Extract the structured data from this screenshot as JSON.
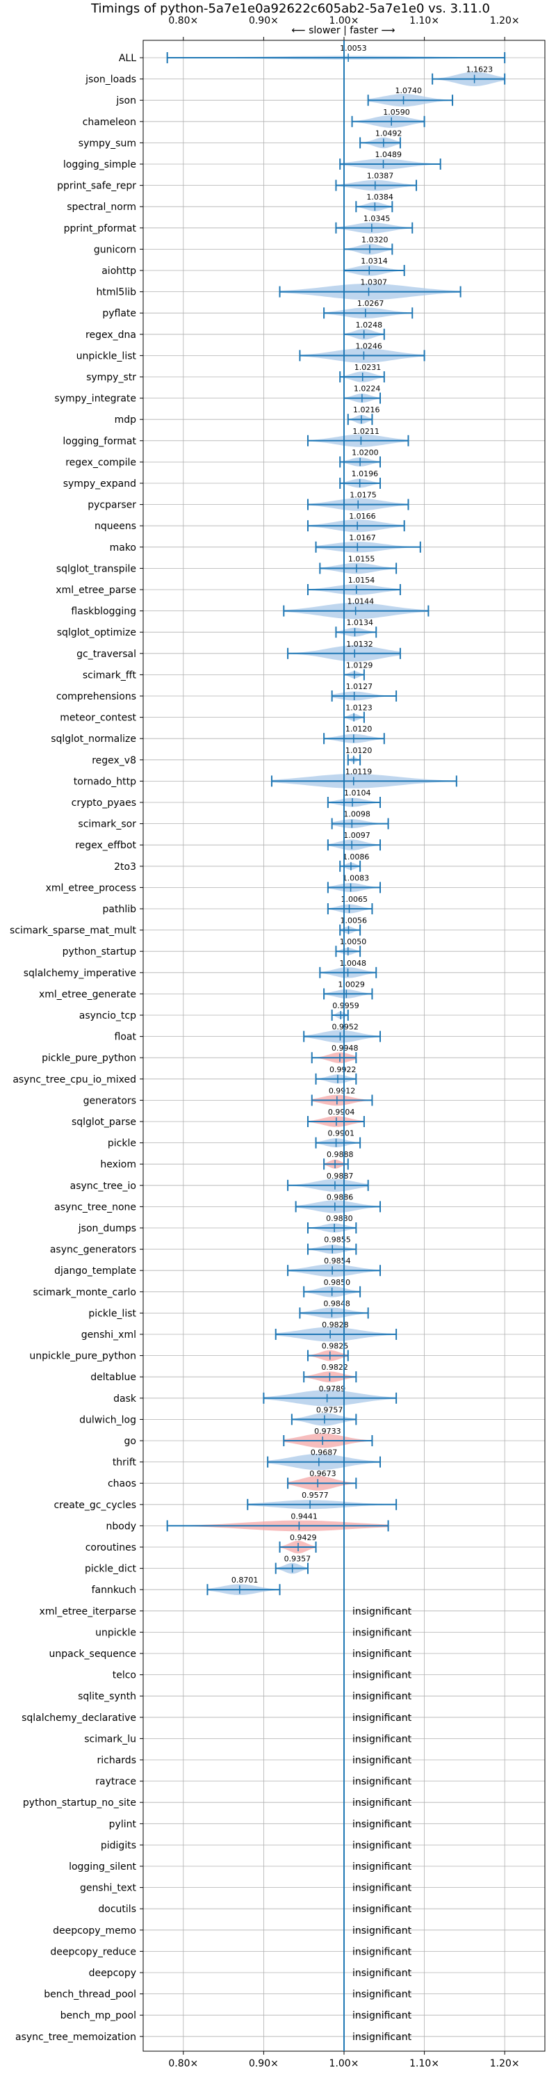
{
  "chart_data": {
    "type": "violin",
    "title": "Timings of python-5a7e1e0a92622c605ab2-5a7e1e0 vs. 3.11.0",
    "direction_label": "⟵ slower | faster ⟶",
    "xlim": [
      0.75,
      1.25
    ],
    "xticks": [
      0.8,
      0.9,
      1.0,
      1.1,
      1.2
    ],
    "xtick_labels": [
      "0.80×",
      "0.90×",
      "1.00×",
      "1.10×",
      "1.20×"
    ],
    "reference_line": 1.0,
    "colors": {
      "faster": "#a9c8e8",
      "slower": "#f4a7a7",
      "errorbar": "#1f77b4",
      "grid": "#b0b0b0"
    },
    "insignificant_label": "insignificant",
    "benchmarks": [
      {
        "name": "ALL",
        "value": 1.0053,
        "label": "1.0053",
        "min": 0.78,
        "max": 1.2,
        "color": "faster",
        "width": 0.2
      },
      {
        "name": "json_loads",
        "value": 1.1623,
        "label": "1.1623",
        "min": 1.11,
        "max": 1.2,
        "color": "faster",
        "width": 0.8
      },
      {
        "name": "json",
        "value": 1.074,
        "label": "1.0740",
        "min": 1.03,
        "max": 1.135,
        "color": "faster",
        "width": 0.7
      },
      {
        "name": "chameleon",
        "value": 1.059,
        "label": "1.0590",
        "min": 1.01,
        "max": 1.1,
        "color": "faster",
        "width": 0.7
      },
      {
        "name": "sympy_sum",
        "value": 1.0492,
        "label": "1.0492",
        "min": 1.02,
        "max": 1.07,
        "color": "faster",
        "width": 0.6
      },
      {
        "name": "logging_simple",
        "value": 1.0489,
        "label": "1.0489",
        "min": 0.995,
        "max": 1.12,
        "color": "faster",
        "width": 0.6
      },
      {
        "name": "pprint_safe_repr",
        "value": 1.0387,
        "label": "1.0387",
        "min": 0.99,
        "max": 1.09,
        "color": "faster",
        "width": 0.6
      },
      {
        "name": "spectral_norm",
        "value": 1.0384,
        "label": "1.0384",
        "min": 1.015,
        "max": 1.06,
        "color": "faster",
        "width": 0.5
      },
      {
        "name": "pprint_pformat",
        "value": 1.0345,
        "label": "1.0345",
        "min": 0.99,
        "max": 1.085,
        "color": "faster",
        "width": 0.6
      },
      {
        "name": "gunicorn",
        "value": 1.032,
        "label": "1.0320",
        "min": 1.0,
        "max": 1.06,
        "color": "faster",
        "width": 0.6
      },
      {
        "name": "aiohttp",
        "value": 1.0314,
        "label": "1.0314",
        "min": 1.0,
        "max": 1.075,
        "color": "faster",
        "width": 0.6
      },
      {
        "name": "html5lib",
        "value": 1.0307,
        "label": "1.0307",
        "min": 0.92,
        "max": 1.145,
        "color": "faster",
        "width": 0.9
      },
      {
        "name": "pyflate",
        "value": 1.0267,
        "label": "1.0267",
        "min": 0.975,
        "max": 1.085,
        "color": "faster",
        "width": 0.6
      },
      {
        "name": "regex_dna",
        "value": 1.0248,
        "label": "1.0248",
        "min": 1.0,
        "max": 1.05,
        "color": "faster",
        "width": 0.6
      },
      {
        "name": "unpickle_list",
        "value": 1.0246,
        "label": "1.0246",
        "min": 0.945,
        "max": 1.1,
        "color": "faster",
        "width": 0.8
      },
      {
        "name": "sympy_str",
        "value": 1.0231,
        "label": "1.0231",
        "min": 0.995,
        "max": 1.05,
        "color": "faster",
        "width": 0.6
      },
      {
        "name": "sympy_integrate",
        "value": 1.0224,
        "label": "1.0224",
        "min": 1.0,
        "max": 1.045,
        "color": "faster",
        "width": 0.5
      },
      {
        "name": "mdp",
        "value": 1.0216,
        "label": "1.0216",
        "min": 1.005,
        "max": 1.035,
        "color": "faster",
        "width": 0.5
      },
      {
        "name": "logging_format",
        "value": 1.0211,
        "label": "1.0211",
        "min": 0.955,
        "max": 1.08,
        "color": "faster",
        "width": 0.7
      },
      {
        "name": "regex_compile",
        "value": 1.02,
        "label": "1.0200",
        "min": 0.995,
        "max": 1.045,
        "color": "faster",
        "width": 0.5
      },
      {
        "name": "sympy_expand",
        "value": 1.0196,
        "label": "1.0196",
        "min": 0.995,
        "max": 1.045,
        "color": "faster",
        "width": 0.5
      },
      {
        "name": "pycparser",
        "value": 1.0175,
        "label": "1.0175",
        "min": 0.955,
        "max": 1.08,
        "color": "faster",
        "width": 0.7
      },
      {
        "name": "nqueens",
        "value": 1.0166,
        "label": "1.0166",
        "min": 0.955,
        "max": 1.075,
        "color": "faster",
        "width": 0.7
      },
      {
        "name": "mako",
        "value": 1.0167,
        "label": "1.0167",
        "min": 0.965,
        "max": 1.095,
        "color": "faster",
        "width": 0.6
      },
      {
        "name": "sqlglot_transpile",
        "value": 1.0155,
        "label": "1.0155",
        "min": 0.97,
        "max": 1.065,
        "color": "faster",
        "width": 0.6
      },
      {
        "name": "xml_etree_parse",
        "value": 1.0154,
        "label": "1.0154",
        "min": 0.955,
        "max": 1.07,
        "color": "faster",
        "width": 0.6
      },
      {
        "name": "flaskblogging",
        "value": 1.0144,
        "label": "1.0144",
        "min": 0.925,
        "max": 1.105,
        "color": "faster",
        "width": 0.9
      },
      {
        "name": "sqlglot_optimize",
        "value": 1.0134,
        "label": "1.0134",
        "min": 0.99,
        "max": 1.04,
        "color": "faster",
        "width": 0.5
      },
      {
        "name": "gc_traversal",
        "value": 1.0132,
        "label": "1.0132",
        "min": 0.93,
        "max": 1.07,
        "color": "faster",
        "width": 0.9
      },
      {
        "name": "scimark_fft",
        "value": 1.0129,
        "label": "1.0129",
        "min": 1.0,
        "max": 1.025,
        "color": "faster",
        "width": 0.4
      },
      {
        "name": "comprehensions",
        "value": 1.0127,
        "label": "1.0127",
        "min": 0.985,
        "max": 1.065,
        "color": "faster",
        "width": 0.5
      },
      {
        "name": "meteor_contest",
        "value": 1.0123,
        "label": "1.0123",
        "min": 1.0,
        "max": 1.025,
        "color": "faster",
        "width": 0.4
      },
      {
        "name": "sqlglot_normalize",
        "value": 1.012,
        "label": "1.0120",
        "min": 0.975,
        "max": 1.05,
        "color": "faster",
        "width": 0.5
      },
      {
        "name": "regex_v8",
        "value": 1.012,
        "label": "1.0120",
        "min": 1.005,
        "max": 1.02,
        "color": "faster",
        "width": 0.3
      },
      {
        "name": "tornado_http",
        "value": 1.0119,
        "label": "1.0119",
        "min": 0.91,
        "max": 1.14,
        "color": "faster",
        "width": 0.8
      },
      {
        "name": "crypto_pyaes",
        "value": 1.0104,
        "label": "1.0104",
        "min": 0.98,
        "max": 1.045,
        "color": "faster",
        "width": 0.5
      },
      {
        "name": "scimark_sor",
        "value": 1.0098,
        "label": "1.0098",
        "min": 0.985,
        "max": 1.055,
        "color": "faster",
        "width": 0.5
      },
      {
        "name": "regex_effbot",
        "value": 1.0097,
        "label": "1.0097",
        "min": 0.98,
        "max": 1.045,
        "color": "faster",
        "width": 0.6
      },
      {
        "name": "2to3",
        "value": 1.0086,
        "label": "1.0086",
        "min": 0.995,
        "max": 1.02,
        "color": "faster",
        "width": 0.4
      },
      {
        "name": "xml_etree_process",
        "value": 1.0083,
        "label": "1.0083",
        "min": 0.98,
        "max": 1.045,
        "color": "faster",
        "width": 0.5
      },
      {
        "name": "pathlib",
        "value": 1.0065,
        "label": "1.0065",
        "min": 0.98,
        "max": 1.035,
        "color": "faster",
        "width": 0.5
      },
      {
        "name": "scimark_sparse_mat_mult",
        "value": 1.0056,
        "label": "1.0056",
        "min": 0.995,
        "max": 1.02,
        "color": "faster",
        "width": 0.4
      },
      {
        "name": "python_startup",
        "value": 1.005,
        "label": "1.0050",
        "min": 0.99,
        "max": 1.02,
        "color": "faster",
        "width": 0.4
      },
      {
        "name": "sqlalchemy_imperative",
        "value": 1.0048,
        "label": "1.0048",
        "min": 0.97,
        "max": 1.04,
        "color": "faster",
        "width": 0.6
      },
      {
        "name": "xml_etree_generate",
        "value": 1.0029,
        "label": "1.0029",
        "min": 0.975,
        "max": 1.035,
        "color": "faster",
        "width": 0.5
      },
      {
        "name": "asyncio_tcp",
        "value": 0.9959,
        "label": "0.9959",
        "min": 0.985,
        "max": 1.005,
        "color": "faster",
        "width": 0.4
      },
      {
        "name": "float",
        "value": 0.9952,
        "label": "0.9952",
        "min": 0.95,
        "max": 1.045,
        "color": "faster",
        "width": 0.7
      },
      {
        "name": "pickle_pure_python",
        "value": 0.9948,
        "label": "0.9948",
        "min": 0.96,
        "max": 1.015,
        "color": "slower",
        "width": 0.6
      },
      {
        "name": "async_tree_cpu_io_mixed",
        "value": 0.9922,
        "label": "0.9922",
        "min": 0.965,
        "max": 1.015,
        "color": "faster",
        "width": 0.5
      },
      {
        "name": "generators",
        "value": 0.9912,
        "label": "0.9912",
        "min": 0.96,
        "max": 1.035,
        "color": "slower",
        "width": 0.6
      },
      {
        "name": "sqlglot_parse",
        "value": 0.9904,
        "label": "0.9904",
        "min": 0.955,
        "max": 1.025,
        "color": "slower",
        "width": 0.6
      },
      {
        "name": "pickle",
        "value": 0.9901,
        "label": "0.9901",
        "min": 0.965,
        "max": 1.02,
        "color": "faster",
        "width": 0.5
      },
      {
        "name": "hexiom",
        "value": 0.9888,
        "label": "0.9888",
        "min": 0.975,
        "max": 1.005,
        "color": "slower",
        "width": 0.5
      },
      {
        "name": "async_tree_io",
        "value": 0.9887,
        "label": "0.9887",
        "min": 0.93,
        "max": 1.03,
        "color": "faster",
        "width": 0.7
      },
      {
        "name": "async_tree_none",
        "value": 0.9886,
        "label": "0.9886",
        "min": 0.94,
        "max": 1.045,
        "color": "faster",
        "width": 0.7
      },
      {
        "name": "json_dumps",
        "value": 0.988,
        "label": "0.9880",
        "min": 0.955,
        "max": 1.015,
        "color": "faster",
        "width": 0.5
      },
      {
        "name": "async_generators",
        "value": 0.9855,
        "label": "0.9855",
        "min": 0.955,
        "max": 1.015,
        "color": "faster",
        "width": 0.5
      },
      {
        "name": "django_template",
        "value": 0.9854,
        "label": "0.9854",
        "min": 0.93,
        "max": 1.045,
        "color": "faster",
        "width": 0.7
      },
      {
        "name": "scimark_monte_carlo",
        "value": 0.985,
        "label": "0.9850",
        "min": 0.95,
        "max": 1.02,
        "color": "faster",
        "width": 0.6
      },
      {
        "name": "pickle_list",
        "value": 0.9848,
        "label": "0.9848",
        "min": 0.945,
        "max": 1.03,
        "color": "faster",
        "width": 0.6
      },
      {
        "name": "genshi_xml",
        "value": 0.9828,
        "label": "0.9828",
        "min": 0.915,
        "max": 1.065,
        "color": "faster",
        "width": 0.8
      },
      {
        "name": "unpickle_pure_python",
        "value": 0.9825,
        "label": "0.9825",
        "min": 0.955,
        "max": 1.005,
        "color": "slower",
        "width": 0.6
      },
      {
        "name": "deltablue",
        "value": 0.9822,
        "label": "0.9822",
        "min": 0.95,
        "max": 1.015,
        "color": "slower",
        "width": 0.6
      },
      {
        "name": "dask",
        "value": 0.9789,
        "label": "0.9789",
        "min": 0.9,
        "max": 1.065,
        "color": "faster",
        "width": 0.9
      },
      {
        "name": "dulwich_log",
        "value": 0.9757,
        "label": "0.9757",
        "min": 0.935,
        "max": 1.015,
        "color": "faster",
        "width": 0.7
      },
      {
        "name": "go",
        "value": 0.9733,
        "label": "0.9733",
        "min": 0.925,
        "max": 1.035,
        "color": "slower",
        "width": 0.8
      },
      {
        "name": "thrift",
        "value": 0.9687,
        "label": "0.9687",
        "min": 0.905,
        "max": 1.045,
        "color": "faster",
        "width": 0.9
      },
      {
        "name": "chaos",
        "value": 0.9673,
        "label": "0.9673",
        "min": 0.93,
        "max": 1.015,
        "color": "slower",
        "width": 0.8
      },
      {
        "name": "create_gc_cycles",
        "value": 0.9577,
        "label": "0.9577",
        "min": 0.88,
        "max": 1.065,
        "color": "faster",
        "width": 0.5
      },
      {
        "name": "nbody",
        "value": 0.9441,
        "label": "0.9441",
        "min": 0.78,
        "max": 1.055,
        "color": "slower",
        "width": 0.6
      },
      {
        "name": "coroutines",
        "value": 0.9429,
        "label": "0.9429",
        "min": 0.92,
        "max": 0.965,
        "color": "slower",
        "width": 0.7
      },
      {
        "name": "pickle_dict",
        "value": 0.9357,
        "label": "0.9357",
        "min": 0.915,
        "max": 0.955,
        "color": "faster",
        "width": 0.6
      },
      {
        "name": "fannkuch",
        "value": 0.8701,
        "label": "0.8701",
        "min": 0.83,
        "max": 0.92,
        "color": "faster",
        "width": 0.6
      },
      {
        "name": "xml_etree_iterparse",
        "insignificant": true
      },
      {
        "name": "unpickle",
        "insignificant": true
      },
      {
        "name": "unpack_sequence",
        "insignificant": true
      },
      {
        "name": "telco",
        "insignificant": true
      },
      {
        "name": "sqlite_synth",
        "insignificant": true
      },
      {
        "name": "sqlalchemy_declarative",
        "insignificant": true
      },
      {
        "name": "scimark_lu",
        "insignificant": true
      },
      {
        "name": "richards",
        "insignificant": true
      },
      {
        "name": "raytrace",
        "insignificant": true
      },
      {
        "name": "python_startup_no_site",
        "insignificant": true
      },
      {
        "name": "pylint",
        "insignificant": true
      },
      {
        "name": "pidigits",
        "insignificant": true
      },
      {
        "name": "logging_silent",
        "insignificant": true
      },
      {
        "name": "genshi_text",
        "insignificant": true
      },
      {
        "name": "docutils",
        "insignificant": true
      },
      {
        "name": "deepcopy_memo",
        "insignificant": true
      },
      {
        "name": "deepcopy_reduce",
        "insignificant": true
      },
      {
        "name": "deepcopy",
        "insignificant": true
      },
      {
        "name": "bench_thread_pool",
        "insignificant": true
      },
      {
        "name": "bench_mp_pool",
        "insignificant": true
      },
      {
        "name": "async_tree_memoization",
        "insignificant": true
      }
    ]
  }
}
